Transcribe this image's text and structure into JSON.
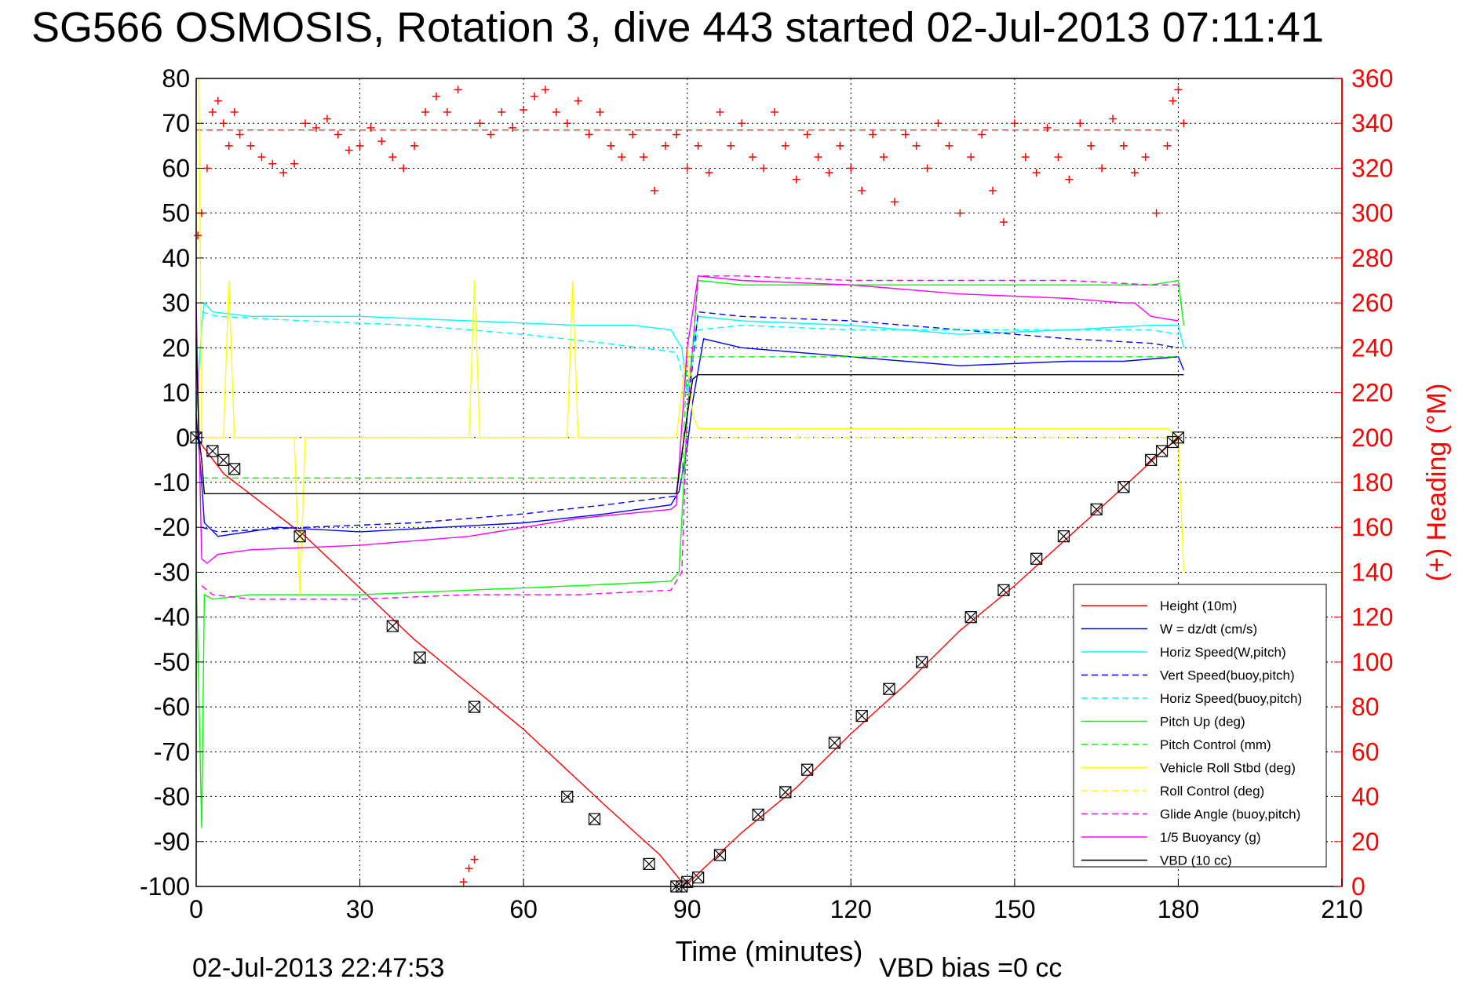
{
  "title": "SG566 OSMOSIS, Rotation 3, dive 443 started 02-Jul-2013 07:11:41",
  "footer_date": "02-Jul-2013 22:47:53",
  "footer_bias": "VBD bias =0 cc",
  "chart_data": {
    "type": "line",
    "xlabel": "Time (minutes)",
    "ylabel_right": "(+) Heading (°M)",
    "xlim": [
      0,
      210
    ],
    "ylim_left": [
      -100,
      80
    ],
    "ylim_right": [
      0,
      360
    ],
    "grid": true,
    "legend_placement": "bottom-right",
    "x_ticks": [
      "0",
      "30",
      "60",
      "90",
      "120",
      "150",
      "180",
      "210"
    ],
    "y_ticks_left": [
      "80",
      "70",
      "60",
      "50",
      "40",
      "30",
      "20",
      "10",
      "0",
      "-10",
      "-20",
      "-30",
      "-40",
      "-50",
      "-60",
      "-70",
      "-80",
      "-90",
      "-100"
    ],
    "y_ticks_right": [
      "360",
      "340",
      "320",
      "300",
      "280",
      "260",
      "240",
      "220",
      "200",
      "180",
      "160",
      "140",
      "120",
      "100",
      "80",
      "60",
      "40",
      "20",
      "0"
    ],
    "series": [
      {
        "name": "Height (10m)",
        "color": "#ff0000",
        "dash": "solid",
        "x": [
          0,
          5,
          20,
          40,
          60,
          75,
          85,
          89,
          90,
          93,
          100,
          110,
          120,
          130,
          140,
          150,
          160,
          170,
          178,
          180.5
        ],
        "y": [
          0,
          -8,
          -22,
          -45,
          -65,
          -82,
          -93,
          -99,
          -99.5,
          -96,
          -88,
          -78,
          -66,
          -55,
          -43,
          -33,
          -22,
          -11,
          -2,
          0
        ]
      },
      {
        "name": "W = dz/dt (cm/s)",
        "color": "#0000ff",
        "dash": "solid",
        "x": [
          0,
          1,
          1.5,
          4,
          15,
          30,
          45,
          60,
          75,
          87,
          88.5,
          90,
          91,
          93,
          100,
          120,
          140,
          160,
          170,
          180,
          181
        ],
        "y": [
          5,
          -10,
          -19,
          -22,
          -20,
          -21,
          -20,
          -19,
          -17,
          -15,
          -12,
          -2,
          8,
          22,
          20,
          18,
          16,
          17,
          17,
          18,
          15
        ]
      },
      {
        "name": "Horiz Speed(W,pitch)",
        "color": "#00ffff",
        "dash": "solid",
        "x": [
          0,
          1,
          1.5,
          3,
          10,
          30,
          50,
          70,
          80,
          87,
          89,
          90,
          91,
          92,
          100,
          120,
          140,
          160,
          175,
          180,
          181
        ],
        "y": [
          5,
          25,
          30,
          28,
          27,
          27,
          26,
          25,
          25,
          24,
          20,
          10,
          20,
          27,
          26,
          25,
          23,
          24,
          25,
          25,
          20
        ]
      },
      {
        "name": "Vert Speed(buoy,pitch)",
        "color": "#0000ff",
        "dash": "dashed",
        "x": [
          1,
          4,
          20,
          40,
          60,
          75,
          88,
          90,
          92,
          100,
          120,
          140,
          160,
          175,
          180
        ],
        "y": [
          -20,
          -21,
          -20,
          -19,
          -17,
          -15,
          -13,
          5,
          28,
          27,
          26,
          24,
          22,
          21,
          20
        ]
      },
      {
        "name": "Horiz Speed(buoy,pitch)",
        "color": "#00ffff",
        "dash": "dashed",
        "x": [
          1,
          4,
          20,
          40,
          60,
          75,
          88,
          90,
          92,
          100,
          120,
          140,
          160,
          175,
          180
        ],
        "y": [
          28,
          27,
          26,
          25,
          23,
          21,
          19,
          10,
          24,
          25,
          24,
          24,
          24,
          24,
          23
        ]
      },
      {
        "name": "Pitch Up (deg)",
        "color": "#00ff00",
        "dash": "solid",
        "x": [
          0,
          1,
          1.5,
          3,
          10,
          30,
          50,
          70,
          87,
          88.5,
          90,
          91,
          92,
          100,
          120,
          140,
          160,
          175,
          180,
          181
        ],
        "y": [
          -30,
          -87,
          -35,
          -36,
          -35,
          -35,
          -34,
          -33,
          -32,
          -30,
          5,
          20,
          35,
          34,
          34,
          34,
          34,
          34,
          35,
          25
        ]
      },
      {
        "name": "Pitch Control (mm)",
        "color": "#00ff00",
        "dash": "dashed",
        "x": [
          1,
          3,
          87,
          89,
          90,
          92,
          180
        ],
        "y": [
          -9,
          -9,
          -9,
          -9,
          18,
          18,
          18
        ]
      },
      {
        "name": "Vehicle Roll Stbd (deg)",
        "color": "#ffff00",
        "dash": "solid",
        "x": [
          0.5,
          1,
          2,
          5,
          6,
          7,
          18,
          19,
          20,
          50,
          51,
          52,
          68,
          69,
          70,
          88,
          89,
          90,
          91,
          92,
          100,
          120,
          140,
          160,
          178,
          180,
          181
        ],
        "y": [
          80,
          0,
          0,
          0,
          35,
          0,
          0,
          -35,
          0,
          0,
          35,
          0,
          0,
          35,
          0,
          0,
          10,
          20,
          5,
          2,
          2,
          2,
          2,
          2,
          2,
          0,
          -30
        ]
      },
      {
        "name": "Roll Control (deg)",
        "color": "#ffff00",
        "dash": "dashed",
        "x": [
          1,
          3,
          87,
          88,
          92,
          180
        ],
        "y": [
          0,
          0,
          0,
          0,
          0,
          0
        ]
      },
      {
        "name": "Glide Angle (buoy,pitch)",
        "color": "#ff00ff",
        "dash": "dashed",
        "x": [
          1,
          3,
          10,
          30,
          50,
          70,
          87,
          89,
          90,
          91,
          92,
          100,
          120,
          140,
          160,
          175,
          180
        ],
        "y": [
          -33,
          -35,
          -36,
          -36,
          -35,
          -35,
          -34,
          -30,
          5,
          20,
          36,
          36,
          35,
          35,
          35,
          34,
          34
        ]
      },
      {
        "name": "1/5 Buoyancy (g)",
        "color": "#ff00ff",
        "dash": "solid",
        "x": [
          0,
          1,
          2,
          4,
          10,
          30,
          50,
          70,
          87,
          88,
          90,
          92,
          100,
          120,
          140,
          160,
          170,
          172,
          175,
          180
        ],
        "y": [
          30,
          -27,
          -28,
          -26,
          -25,
          -24,
          -22,
          -18,
          -16,
          -15,
          20,
          36,
          35,
          34,
          32,
          31,
          30,
          30,
          27,
          26
        ]
      },
      {
        "name": "VBD (10 cc)",
        "color": "#000000",
        "dash": "solid",
        "x": [
          0,
          0.5,
          1,
          1.5,
          4,
          10,
          30,
          60,
          87,
          88,
          90,
          91,
          92,
          120,
          150,
          180,
          181
        ],
        "y": [
          22,
          0,
          -5,
          -12.5,
          -12.5,
          -12.5,
          -12.5,
          -12.5,
          -12.5,
          -12.5,
          5,
          13,
          14,
          14,
          14,
          14,
          14
        ]
      }
    ],
    "heading_series": {
      "name": "Heading (°M)",
      "axis": "right",
      "color": "#ff0000",
      "marker": "+",
      "reference_line": 337,
      "x": [
        0.3,
        1,
        2,
        3,
        4,
        5,
        6,
        7,
        8,
        10,
        12,
        14,
        16,
        18,
        20,
        22,
        24,
        26,
        28,
        30,
        32,
        34,
        36,
        38,
        40,
        42,
        44,
        46,
        48,
        49,
        50,
        51,
        52,
        54,
        56,
        58,
        60,
        62,
        64,
        66,
        68,
        70,
        72,
        74,
        76,
        78,
        80,
        82,
        84,
        86,
        88,
        90,
        92,
        94,
        96,
        98,
        100,
        102,
        104,
        106,
        108,
        110,
        112,
        114,
        116,
        118,
        120,
        122,
        124,
        126,
        128,
        130,
        132,
        134,
        136,
        138,
        140,
        142,
        144,
        146,
        148,
        150,
        152,
        154,
        156,
        158,
        160,
        162,
        164,
        166,
        168,
        170,
        172,
        174,
        176,
        178,
        179,
        180,
        181
      ],
      "y": [
        290,
        300,
        320,
        345,
        350,
        340,
        330,
        345,
        335,
        330,
        325,
        322,
        318,
        322,
        340,
        338,
        342,
        335,
        328,
        330,
        338,
        332,
        325,
        320,
        330,
        345,
        352,
        345,
        355,
        2,
        8,
        12,
        340,
        335,
        345,
        338,
        346,
        352,
        355,
        345,
        340,
        350,
        335,
        345,
        330,
        325,
        335,
        325,
        310,
        330,
        335,
        320,
        330,
        318,
        345,
        330,
        340,
        325,
        320,
        345,
        330,
        315,
        335,
        325,
        318,
        330,
        320,
        310,
        335,
        325,
        305,
        335,
        330,
        320,
        340,
        330,
        300,
        325,
        335,
        310,
        296,
        340,
        325,
        318,
        338,
        325,
        315,
        340,
        330,
        320,
        342,
        330,
        318,
        325,
        300,
        330,
        350,
        355,
        340
      ]
    },
    "depth_markers": {
      "name": "Height (10m) sample markers",
      "marker": "boxed-x",
      "color": "#000000",
      "x": [
        0,
        3,
        5,
        7,
        19,
        36,
        41,
        51,
        68,
        73,
        83,
        88,
        89,
        90,
        92,
        96,
        103,
        108,
        112,
        117,
        122,
        127,
        133,
        142,
        148,
        154,
        159,
        165,
        170,
        175,
        177,
        179,
        180
      ],
      "y": [
        0,
        -3,
        -5,
        -7,
        -22,
        -42,
        -49,
        -60,
        -80,
        -85,
        -95,
        -100,
        -100,
        -99,
        -98,
        -93,
        -84,
        -79,
        -74,
        -68,
        -62,
        -56,
        -50,
        -40,
        -34,
        -27,
        -22,
        -16,
        -11,
        -5,
        -3,
        -1,
        0
      ]
    }
  }
}
